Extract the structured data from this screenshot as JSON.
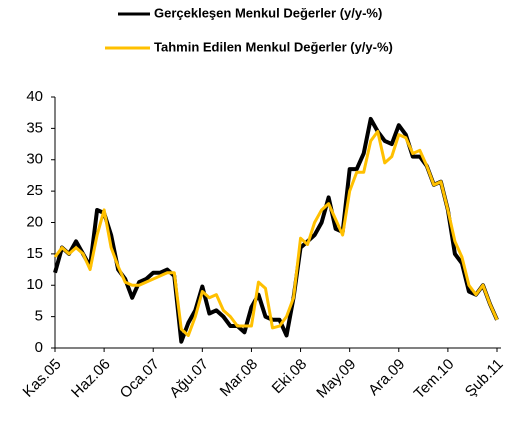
{
  "chart_data": {
    "type": "line",
    "categories": [
      "Kas.05",
      null,
      null,
      null,
      null,
      null,
      null,
      "Haz.06",
      null,
      null,
      null,
      null,
      null,
      null,
      "Oca.07",
      null,
      null,
      null,
      null,
      null,
      null,
      "Ağu.07",
      null,
      null,
      null,
      null,
      null,
      null,
      "Mar.08",
      null,
      null,
      null,
      null,
      null,
      null,
      "Eki.08",
      null,
      null,
      null,
      null,
      null,
      null,
      "May.09",
      null,
      null,
      null,
      null,
      null,
      null,
      "Ara.09",
      null,
      null,
      null,
      null,
      null,
      null,
      "Tem.10",
      null,
      null,
      null,
      null,
      null,
      null,
      "Şub.11"
    ],
    "series": [
      {
        "name": "Gerçekleşen Menkul Değerler (y/y-%)",
        "color": "#000000",
        "values": [
          12,
          16,
          15,
          17,
          15,
          13,
          22,
          21.5,
          18,
          12.5,
          11,
          8,
          10.5,
          11,
          12,
          12,
          12.5,
          11.5,
          1,
          4,
          6,
          9.8,
          5.5,
          6,
          5,
          3.5,
          3.5,
          2.5,
          6.5,
          8.5,
          5,
          4.5,
          4.5,
          2,
          8,
          16,
          17,
          18,
          20,
          24,
          19,
          18.5,
          28.5,
          28.5,
          31,
          36.5,
          34.5,
          33,
          32.5,
          35.5,
          34,
          30.5,
          30.5,
          29,
          26,
          26.5,
          22,
          15,
          13.5,
          9,
          8.5,
          10,
          7,
          4.5
        ]
      },
      {
        "name": "Tahmin Edilen Menkul Değerler (y/y-%)",
        "color": "#ffc000",
        "values": [
          14.5,
          16,
          15,
          16,
          15,
          12.5,
          18,
          22,
          16,
          13,
          10.5,
          10,
          10,
          10.5,
          11,
          11.5,
          12,
          12,
          3,
          2,
          5,
          9,
          8,
          8.5,
          6,
          5,
          3.5,
          3.5,
          3.5,
          10.5,
          9.5,
          3.2,
          3.5,
          5,
          8,
          17.5,
          16.5,
          20,
          22,
          23,
          20.5,
          18,
          25,
          28,
          28,
          33,
          34.5,
          29.5,
          30.5,
          34,
          33.5,
          31,
          31.5,
          29,
          26,
          26.5,
          22,
          17,
          14.5,
          10,
          8.5,
          10,
          7,
          4.5
        ]
      }
    ],
    "ylim": [
      0,
      40
    ],
    "yticks": [
      0,
      5,
      10,
      15,
      20,
      25,
      30,
      35,
      40
    ],
    "grid": false,
    "legend": "top"
  }
}
